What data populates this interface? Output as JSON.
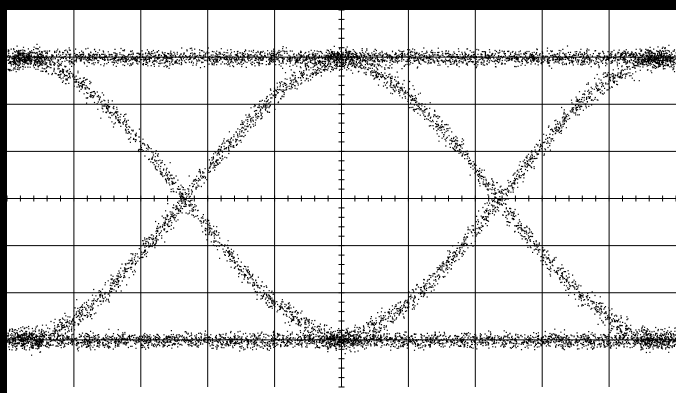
{
  "display": {
    "background": "#ffffff",
    "frame_color": "#000000",
    "grid_color": "#000000",
    "trace_color": "#000000",
    "divisions_x": 10,
    "divisions_y": 8,
    "minor_ticks_per_division": 5,
    "grid": true
  },
  "eye": {
    "level_high": 3.0,
    "level_low": -3.0,
    "crossings_div": [
      -2.35,
      2.35
    ],
    "unit_interval_div": 4.7,
    "rise_fraction_of_ui": 0.55,
    "noise_rail_div": 0.12,
    "noise_transition_div": 0.16
  }
}
